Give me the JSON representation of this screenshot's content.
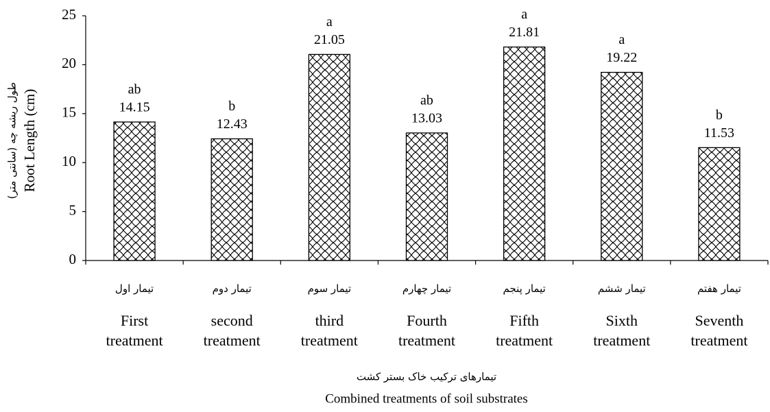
{
  "chart_data": {
    "type": "bar",
    "categories": [
      "First\ntreatment",
      "second\ntreatment",
      "third\ntreatment",
      "Fourth\ntreatment",
      "Fifth\ntreatment",
      "Sixth\ntreatment",
      "Seventh\ntreatment"
    ],
    "categories_fa": [
      "تیمار اول",
      "تیمار دوم",
      "تیمار سوم",
      "تیمار چهارم",
      "تیمار پنجم",
      "تیمار ششم",
      "تیمار هفتم"
    ],
    "values": [
      14.15,
      12.43,
      21.05,
      13.03,
      21.81,
      19.22,
      11.53
    ],
    "letters": [
      "ab",
      "b",
      "a",
      "ab",
      "a",
      "a",
      "b"
    ],
    "color": "#000000",
    "ylim": [
      0,
      25
    ],
    "yticks": [
      0,
      5,
      10,
      15,
      20,
      25
    ],
    "y_label": "Root Length (cm)",
    "y_label_fa": "طول ریشه چه (سانتی متر)",
    "x_label_fa": "تیمارهای ترکیب خاک بستر کشت",
    "x_label": "Combined treatments of soil substrates",
    "grid": false
  }
}
